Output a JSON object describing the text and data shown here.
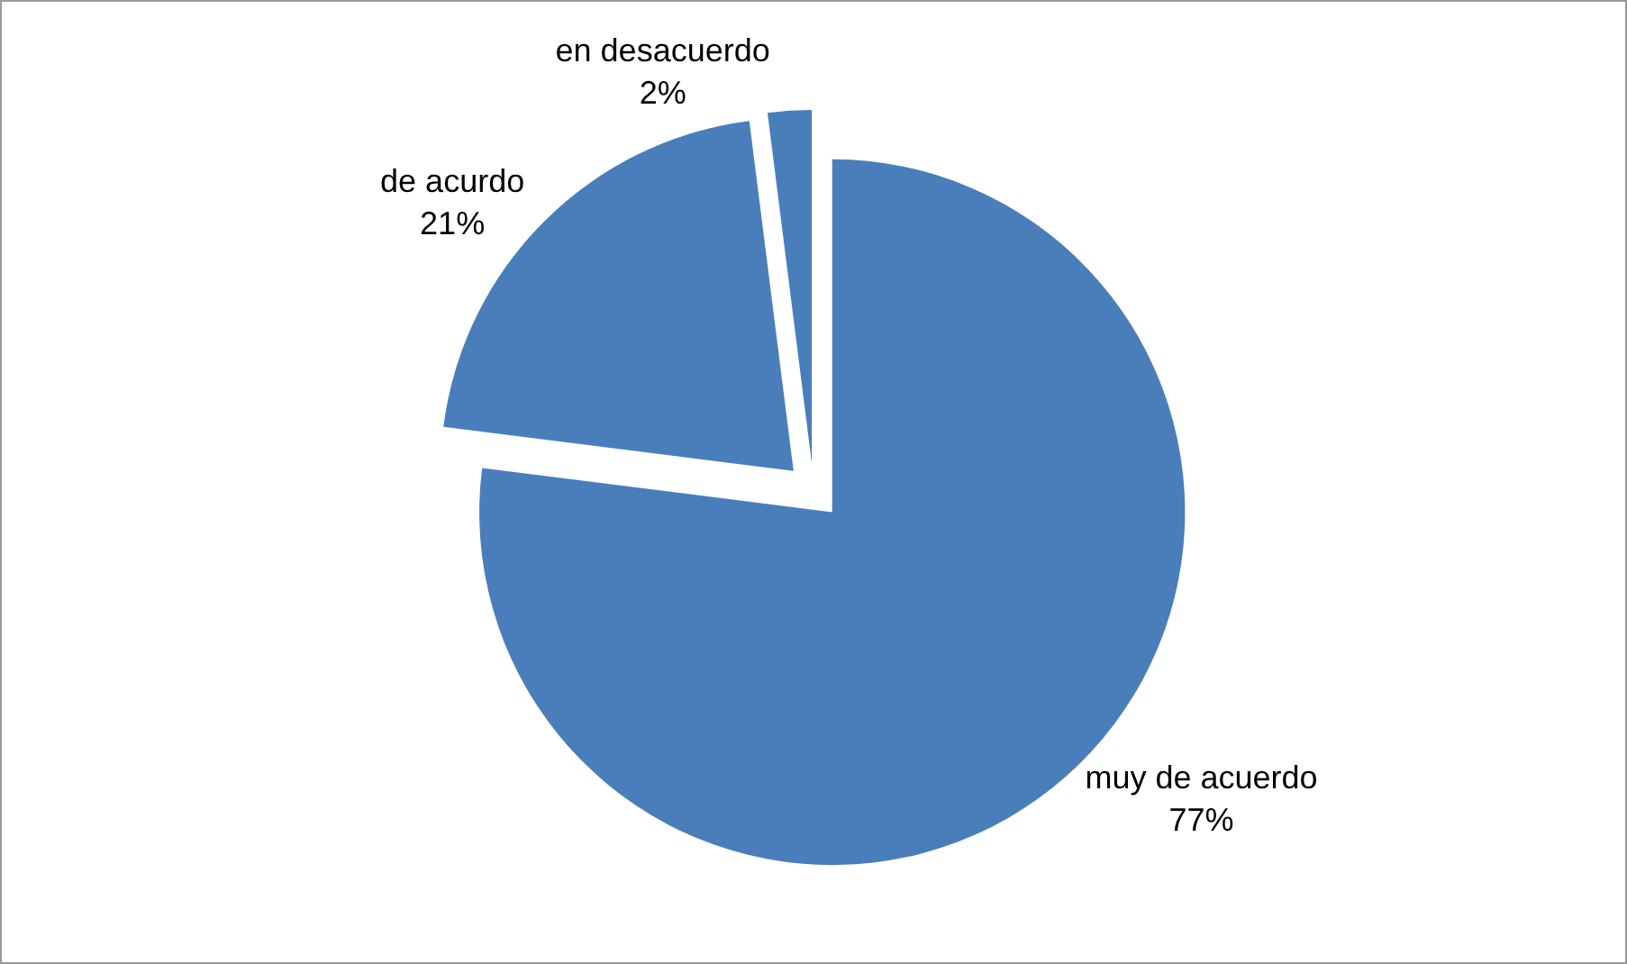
{
  "chart_data": {
    "type": "pie",
    "categories": [
      "muy de acuerdo",
      "de acurdo",
      "en desacuerdo"
    ],
    "values": [
      77,
      21,
      2
    ],
    "colors": [
      "#4a7ebb",
      "#4a7ebb",
      "#4a7ebb"
    ],
    "value_labels": [
      "77%",
      "21%",
      "2%"
    ],
    "legend": false
  }
}
